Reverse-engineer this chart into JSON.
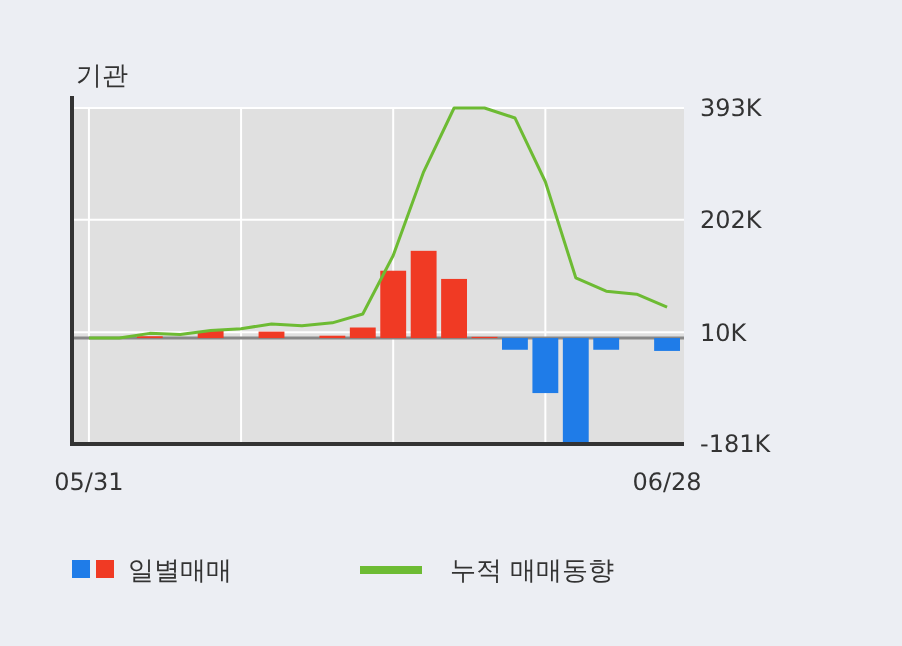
{
  "chart_data": {
    "type": "bar",
    "title": "기관",
    "categories": [
      "05/31",
      null,
      null,
      null,
      null,
      null,
      null,
      null,
      null,
      null,
      null,
      null,
      null,
      null,
      null,
      null,
      null,
      null,
      null,
      "06/28"
    ],
    "series": [
      {
        "name": "일별매매",
        "values": [
          0,
          0,
          3000,
          0,
          12000,
          0,
          11000,
          0,
          4000,
          18000,
          115000,
          149000,
          101000,
          2000,
          -20000,
          -94000,
          -180000,
          -20000,
          0,
          -22000
        ],
        "colors": [
          "#f03a24",
          "#f03a24",
          "#f03a24",
          "#f03a24",
          "#f03a24",
          "#f03a24",
          "#f03a24",
          "#f03a24",
          "#f03a24",
          "#f03a24",
          "#f03a24",
          "#f03a24",
          "#f03a24",
          "#f03a24",
          "#1f7ce8",
          "#1f7ce8",
          "#1f7ce8",
          "#1f7ce8",
          "#1f7ce8",
          "#1f7ce8"
        ]
      },
      {
        "type": "line",
        "name": "누적 매매동향",
        "color": "#6dbb33",
        "values": [
          0,
          0,
          8000,
          6000,
          13000,
          16000,
          24000,
          21000,
          26000,
          41000,
          141000,
          284000,
          393000,
          393000,
          376000,
          267000,
          103000,
          80000,
          75000,
          53000
        ]
      }
    ],
    "ylim": [
      -181000,
      393000
    ],
    "yticks": [
      {
        "value": -181000,
        "label": "-181K"
      },
      {
        "value": 10000,
        "label": "10K"
      },
      {
        "value": 202000,
        "label": "202K"
      },
      {
        "value": 393000,
        "label": "393K"
      }
    ],
    "grid": true,
    "legend": "bottom"
  }
}
